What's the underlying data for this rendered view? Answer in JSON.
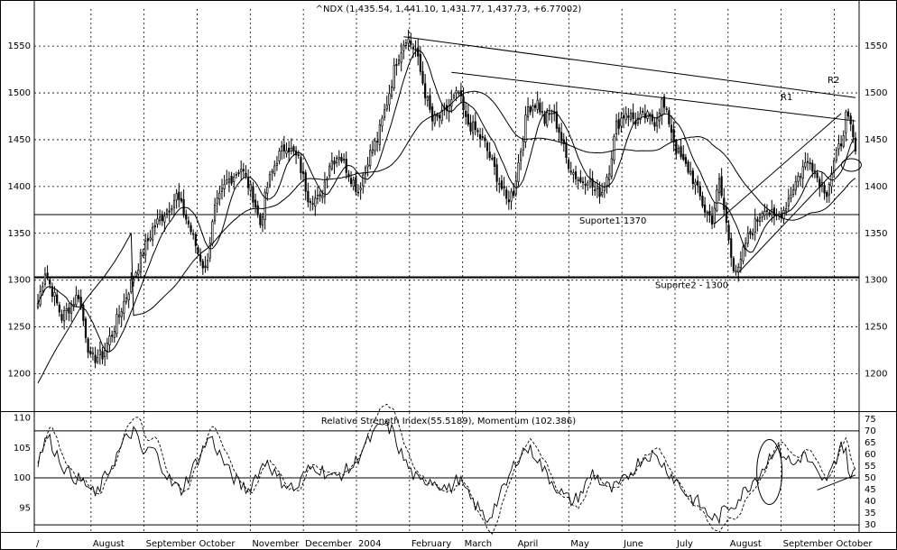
{
  "chart_data": [
    {
      "type": "candlestick",
      "title": "^NDX (1,435.54, 1,441.10, 1,431.77, 1,437.73, +6.77002)",
      "ylim": [
        1160,
        1580
      ],
      "y_ticks": [
        1200,
        1250,
        1300,
        1350,
        1400,
        1450,
        1500,
        1550
      ],
      "x_labels": [
        "/",
        "August",
        "September",
        "October",
        "November",
        "December",
        "2004",
        "February",
        "March",
        "April",
        "May",
        "June",
        "July",
        "August",
        "September",
        "October"
      ],
      "price_path": [
        [
          0,
          1275
        ],
        [
          3,
          1310
        ],
        [
          10,
          1260
        ],
        [
          17,
          1285
        ],
        [
          22,
          1215
        ],
        [
          27,
          1220
        ],
        [
          32,
          1250
        ],
        [
          38,
          1290
        ],
        [
          44,
          1330
        ],
        [
          48,
          1355
        ],
        [
          53,
          1372
        ],
        [
          58,
          1390
        ],
        [
          63,
          1360
        ],
        [
          67,
          1330
        ],
        [
          70,
          1310
        ],
        [
          74,
          1375
        ],
        [
          79,
          1405
        ],
        [
          85,
          1420
        ],
        [
          90,
          1390
        ],
        [
          93,
          1360
        ],
        [
          96,
          1400
        ],
        [
          100,
          1430
        ],
        [
          104,
          1445
        ],
        [
          109,
          1428
        ],
        [
          113,
          1390
        ],
        [
          118,
          1385
        ],
        [
          122,
          1425
        ],
        [
          126,
          1435
        ],
        [
          130,
          1415
        ],
        [
          134,
          1395
        ],
        [
          138,
          1430
        ],
        [
          142,
          1450
        ],
        [
          146,
          1490
        ],
        [
          150,
          1535
        ],
        [
          154,
          1560
        ],
        [
          158,
          1545
        ],
        [
          162,
          1500
        ],
        [
          165,
          1470
        ],
        [
          169,
          1475
        ],
        [
          173,
          1490
        ],
        [
          176,
          1500
        ],
        [
          179,
          1470
        ],
        [
          183,
          1460
        ],
        [
          187,
          1445
        ],
        [
          190,
          1425
        ],
        [
          193,
          1405
        ],
        [
          196,
          1385
        ],
        [
          199,
          1395
        ],
        [
          202,
          1440
        ],
        [
          205,
          1485
        ],
        [
          209,
          1490
        ],
        [
          212,
          1470
        ],
        [
          215,
          1480
        ],
        [
          218,
          1460
        ],
        [
          221,
          1430
        ],
        [
          224,
          1415
        ],
        [
          227,
          1405
        ],
        [
          230,
          1410
        ],
        [
          233,
          1395
        ],
        [
          236,
          1395
        ],
        [
          239,
          1420
        ],
        [
          242,
          1465
        ],
        [
          246,
          1480
        ],
        [
          250,
          1470
        ],
        [
          254,
          1475
        ],
        [
          258,
          1470
        ],
        [
          261,
          1490
        ],
        [
          264,
          1470
        ],
        [
          267,
          1440
        ],
        [
          270,
          1425
        ],
        [
          273,
          1415
        ],
        [
          276,
          1395
        ],
        [
          279,
          1375
        ],
        [
          282,
          1365
        ],
        [
          285,
          1405
        ],
        [
          288,
          1360
        ],
        [
          291,
          1315
        ],
        [
          293,
          1308
        ],
        [
          296,
          1340
        ],
        [
          300,
          1360
        ],
        [
          304,
          1380
        ],
        [
          308,
          1365
        ],
        [
          312,
          1375
        ],
        [
          316,
          1400
        ],
        [
          320,
          1420
        ],
        [
          323,
          1430
        ],
        [
          326,
          1410
        ],
        [
          330,
          1395
        ],
        [
          333,
          1425
        ],
        [
          336,
          1448
        ],
        [
          338,
          1475
        ],
        [
          340,
          1462
        ],
        [
          342,
          1437
        ]
      ],
      "annotations": [
        "R2",
        "R1",
        "Suporte1 1370",
        "Suporte2 - 1300"
      ],
      "levels": {
        "support1": 1370,
        "support2": 1303
      }
    },
    {
      "type": "line",
      "title": "Relative Strength Index(55.5189), Momentum (102.386)",
      "left_ylim": [
        91,
        111
      ],
      "left_ticks": [
        95,
        100,
        105,
        110
      ],
      "right_ylim": [
        27,
        78
      ],
      "right_ticks": [
        30,
        35,
        40,
        45,
        50,
        55,
        60,
        65,
        70,
        75
      ],
      "rsi_levels": [
        30,
        50,
        70
      ],
      "momentum_path": [
        [
          0,
          103
        ],
        [
          4,
          107
        ],
        [
          8,
          104
        ],
        [
          12,
          101
        ],
        [
          16,
          100
        ],
        [
          20,
          99
        ],
        [
          24,
          97
        ],
        [
          28,
          100
        ],
        [
          32,
          103
        ],
        [
          36,
          106
        ],
        [
          40,
          108
        ],
        [
          44,
          104
        ],
        [
          48,
          105
        ],
        [
          52,
          102
        ],
        [
          56,
          99
        ],
        [
          60,
          98
        ],
        [
          64,
          101
        ],
        [
          68,
          104
        ],
        [
          72,
          107
        ],
        [
          76,
          104
        ],
        [
          80,
          101
        ],
        [
          84,
          99
        ],
        [
          88,
          98
        ],
        [
          92,
          101
        ],
        [
          96,
          103
        ],
        [
          100,
          100
        ],
        [
          104,
          99
        ],
        [
          108,
          98
        ],
        [
          112,
          101
        ],
        [
          116,
          102
        ],
        [
          120,
          101
        ],
        [
          124,
          100
        ],
        [
          128,
          101
        ],
        [
          132,
          102
        ],
        [
          136,
          105
        ],
        [
          140,
          107
        ],
        [
          144,
          109
        ],
        [
          148,
          108
        ],
        [
          152,
          104
        ],
        [
          156,
          101
        ],
        [
          160,
          99
        ],
        [
          164,
          100
        ],
        [
          168,
          99
        ],
        [
          172,
          98
        ],
        [
          176,
          100
        ],
        [
          180,
          97
        ],
        [
          184,
          95
        ],
        [
          188,
          93
        ],
        [
          192,
          96
        ],
        [
          196,
          99
        ],
        [
          200,
          103
        ],
        [
          204,
          105
        ],
        [
          208,
          104
        ],
        [
          212,
          101
        ],
        [
          216,
          99
        ],
        [
          220,
          97
        ],
        [
          224,
          96
        ],
        [
          228,
          98
        ],
        [
          232,
          101
        ],
        [
          236,
          99
        ],
        [
          240,
          98
        ],
        [
          244,
          99
        ],
        [
          248,
          101
        ],
        [
          252,
          103
        ],
        [
          256,
          104
        ],
        [
          260,
          103
        ],
        [
          264,
          101
        ],
        [
          268,
          99
        ],
        [
          272,
          97
        ],
        [
          276,
          96
        ],
        [
          280,
          94
        ],
        [
          284,
          93
        ],
        [
          288,
          95
        ],
        [
          292,
          96
        ],
        [
          296,
          98
        ],
        [
          300,
          100
        ],
        [
          304,
          102
        ],
        [
          308,
          105
        ],
        [
          312,
          104
        ],
        [
          316,
          102
        ],
        [
          320,
          104
        ],
        [
          324,
          102
        ],
        [
          328,
          99
        ],
        [
          332,
          101
        ],
        [
          336,
          106
        ],
        [
          338,
          104
        ],
        [
          340,
          100
        ],
        [
          342,
          101
        ]
      ]
    }
  ]
}
